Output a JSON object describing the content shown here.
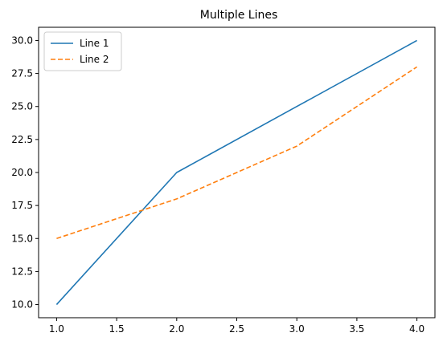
{
  "chart_data": {
    "type": "line",
    "title": "Multiple Lines",
    "xlabel": "",
    "ylabel": "",
    "x": [
      1.0,
      2.0,
      3.0,
      4.0
    ],
    "xlim": [
      0.85,
      4.15
    ],
    "ylim": [
      9.0,
      31.0
    ],
    "xticks": [
      1.0,
      1.5,
      2.0,
      2.5,
      3.0,
      3.5,
      4.0
    ],
    "xtick_labels": [
      "1.0",
      "1.5",
      "2.0",
      "2.5",
      "3.0",
      "3.5",
      "4.0"
    ],
    "yticks": [
      10.0,
      12.5,
      15.0,
      17.5,
      20.0,
      22.5,
      25.0,
      27.5,
      30.0
    ],
    "ytick_labels": [
      "10.0",
      "12.5",
      "15.0",
      "17.5",
      "20.0",
      "22.5",
      "25.0",
      "27.5",
      "30.0"
    ],
    "grid": false,
    "legend_position": "upper-left",
    "series": [
      {
        "name": "Line 1",
        "values": [
          10,
          20,
          25,
          30
        ],
        "color": "#1f77b4",
        "style": "solid"
      },
      {
        "name": "Line 2",
        "values": [
          15,
          18,
          22,
          28
        ],
        "color": "#ff7f0e",
        "style": "dashed"
      }
    ]
  }
}
